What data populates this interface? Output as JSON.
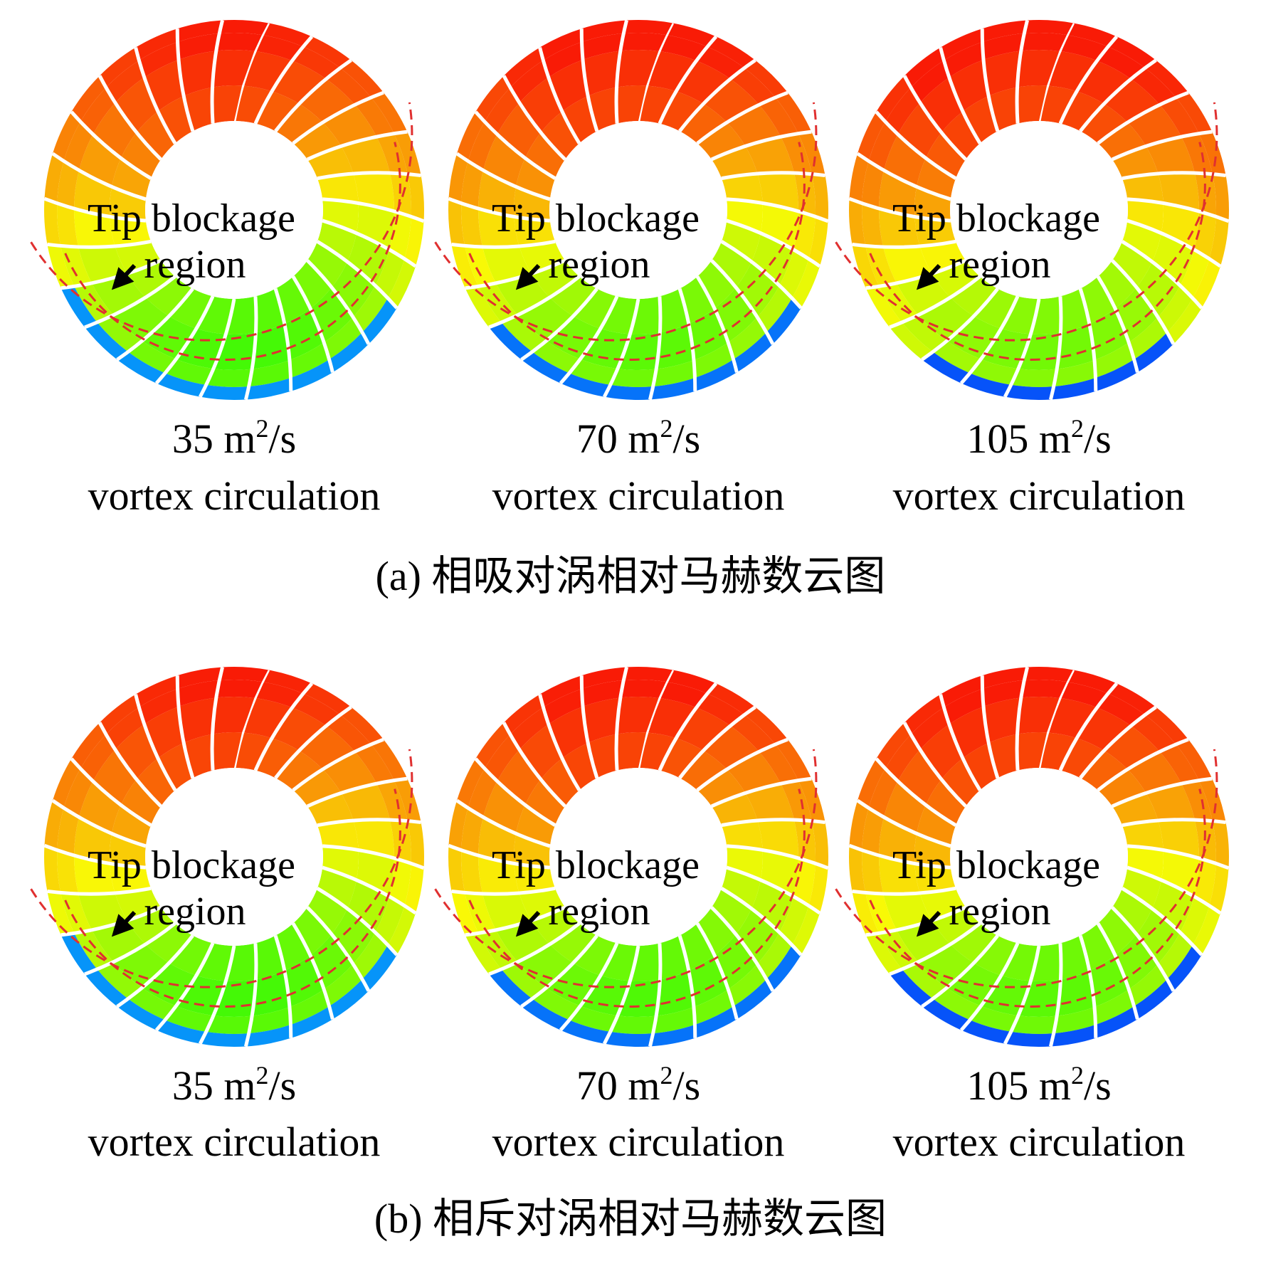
{
  "panels": [
    {
      "caption": "(a) 相吸对涡相对马赫数云图",
      "subfigures": [
        {
          "annotation_line1": "Tip blockage",
          "annotation_line2": "region",
          "label_pre": "35 m",
          "label_sup": "2",
          "label_post": "/s",
          "label_line2": "vortex circulation"
        },
        {
          "annotation_line1": "Tip blockage",
          "annotation_line2": "region",
          "label_pre": "70 m",
          "label_sup": "2",
          "label_post": "/s",
          "label_line2": "vortex circulation"
        },
        {
          "annotation_line1": "Tip blockage",
          "annotation_line2": "region",
          "label_pre": "105 m",
          "label_sup": "2",
          "label_post": "/s",
          "label_line2": "vortex circulation"
        }
      ]
    },
    {
      "caption": "(b) 相斥对涡相对马赫数云图",
      "subfigures": [
        {
          "annotation_line1": "Tip blockage",
          "annotation_line2": "region",
          "label_pre": "35 m",
          "label_sup": "2",
          "label_post": "/s",
          "label_line2": "vortex circulation"
        },
        {
          "annotation_line1": "Tip blockage",
          "annotation_line2": "region",
          "label_pre": "70 m",
          "label_sup": "2",
          "label_post": "/s",
          "label_line2": "vortex circulation"
        },
        {
          "annotation_line1": "Tip blockage",
          "annotation_line2": "region",
          "label_pre": "105 m",
          "label_sup": "2",
          "label_post": "/s",
          "label_line2": "vortex circulation"
        }
      ]
    }
  ]
}
